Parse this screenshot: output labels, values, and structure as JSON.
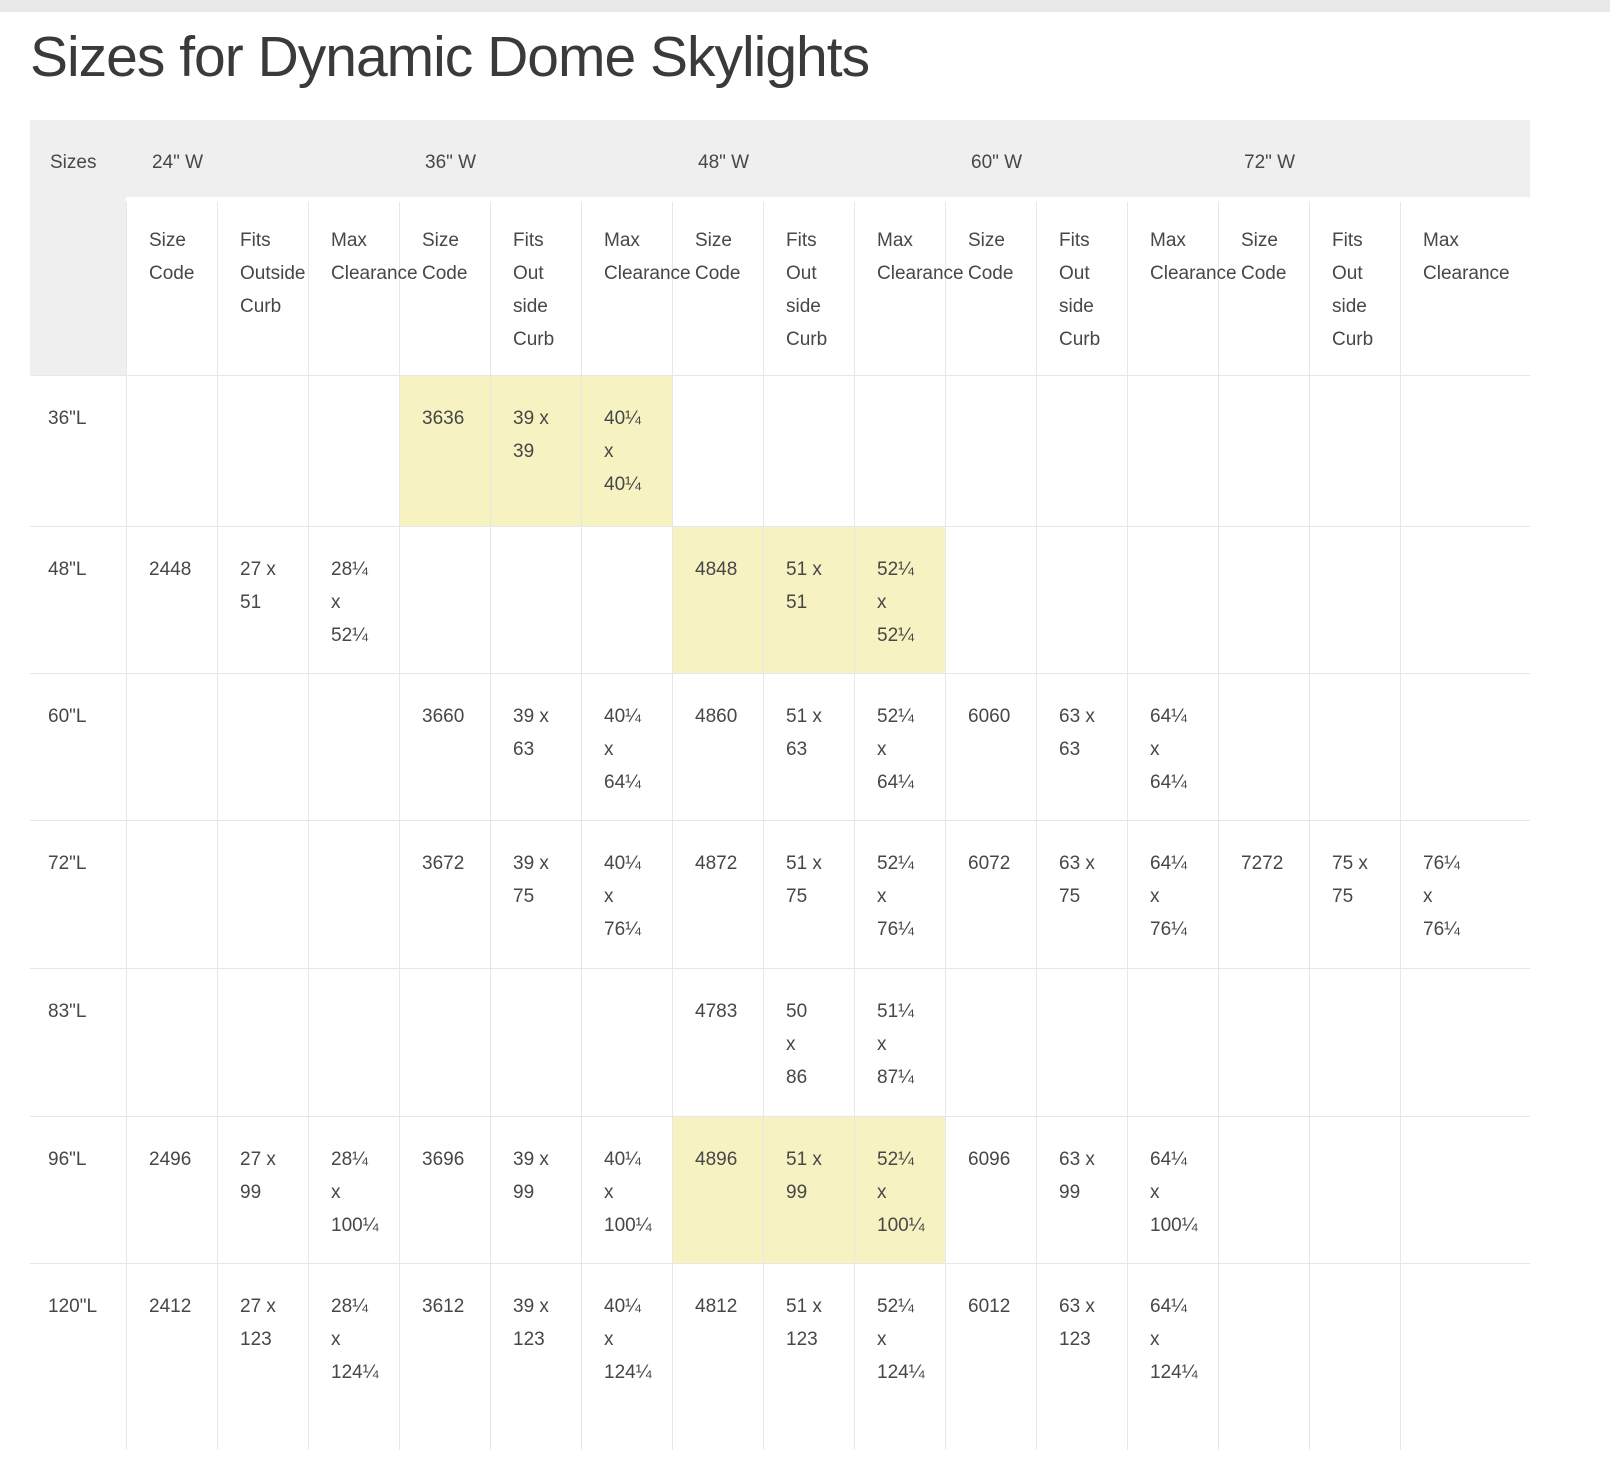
{
  "page": {
    "title": "Sizes for Dynamic Dome Skylights"
  },
  "colors": {
    "header_bg": "#efefef",
    "highlight_yellow": "#f7f2c1",
    "grid_line": "#e7e7e7",
    "text": "#474747",
    "top_strip": "#e9e9e9"
  },
  "table": {
    "corner_label": "Sizes",
    "groups": [
      {
        "label": "24\" W"
      },
      {
        "label": "36\" W"
      },
      {
        "label": "48\" W"
      },
      {
        "label": "60\" W"
      },
      {
        "label": "72\" W"
      }
    ],
    "sub_headers": [
      "Size\nCode",
      "Fits\nOutside\nCurb",
      "Max\nClearance",
      "Size\nCode",
      "Fits\nOut\nside\nCurb",
      "Max\nClearance",
      "Size\nCode",
      "Fits\nOut\nside\nCurb",
      "Max\nClearance",
      "Size\nCode",
      "Fits\nOut\nside\nCurb",
      "Max\nClearance",
      "Size\nCode",
      "Fits\nOut\nside\nCurb",
      "Max\nClearance"
    ],
    "rows": [
      {
        "label": "36\"L",
        "cells": [
          "",
          "",
          "",
          "3636",
          "39 x\n39",
          "40¼\nx\n40¼",
          "",
          "",
          "",
          "",
          "",
          "",
          "",
          "",
          ""
        ],
        "highlight_cols": [
          3,
          4,
          5
        ]
      },
      {
        "label": "48\"L",
        "cells": [
          "2448",
          "27 x\n51",
          "28¼\nx\n52¼",
          "",
          "",
          "",
          "4848",
          "51 x\n51",
          "52¼\nx\n52¼",
          "",
          "",
          "",
          "",
          "",
          ""
        ],
        "highlight_cols": [
          6,
          7,
          8
        ]
      },
      {
        "label": "60\"L",
        "cells": [
          "",
          "",
          "",
          "3660",
          "39 x\n63",
          "40¼\nx\n64¼",
          "4860",
          "51 x\n63",
          "52¼\nx\n64¼",
          "6060",
          "63 x\n63",
          "64¼\nx\n64¼",
          "",
          "",
          ""
        ],
        "highlight_cols": []
      },
      {
        "label": "72\"L",
        "cells": [
          "",
          "",
          "",
          "3672",
          "39 x\n75",
          "40¼\nx\n76¼",
          "4872",
          "51 x\n75",
          "52¼\nx\n76¼",
          "6072",
          "63 x\n75",
          "64¼\nx\n76¼",
          "7272",
          "75 x\n75",
          "76¼\nx\n76¼"
        ],
        "highlight_cols": []
      },
      {
        "label": "83\"L",
        "cells": [
          "",
          "",
          "",
          "",
          "",
          "",
          "4783",
          "50\nx\n86",
          "51¼\nx\n87¼",
          "",
          "",
          "",
          "",
          "",
          ""
        ],
        "highlight_cols": []
      },
      {
        "label": "96\"L",
        "cells": [
          "2496",
          "27 x\n99",
          "28¼\nx\n100¼",
          "3696",
          "39 x\n99",
          "40¼\nx\n100¼",
          "4896",
          "51 x\n99",
          "52¼\nx\n100¼",
          "6096",
          "63 x\n99",
          "64¼\nx\n100¼",
          "",
          "",
          ""
        ],
        "highlight_cols": [
          6,
          7,
          8
        ]
      },
      {
        "label": "120\"L",
        "cells": [
          "2412",
          "27 x\n123",
          "28¼\nx\n124¼",
          "3612",
          "39 x\n123",
          "40¼\nx\n124¼",
          "4812",
          "51 x\n123",
          "52¼\nx\n124¼",
          "6012",
          "63 x\n123",
          "64¼\nx\n124¼",
          "",
          "",
          ""
        ],
        "highlight_cols": []
      }
    ]
  }
}
